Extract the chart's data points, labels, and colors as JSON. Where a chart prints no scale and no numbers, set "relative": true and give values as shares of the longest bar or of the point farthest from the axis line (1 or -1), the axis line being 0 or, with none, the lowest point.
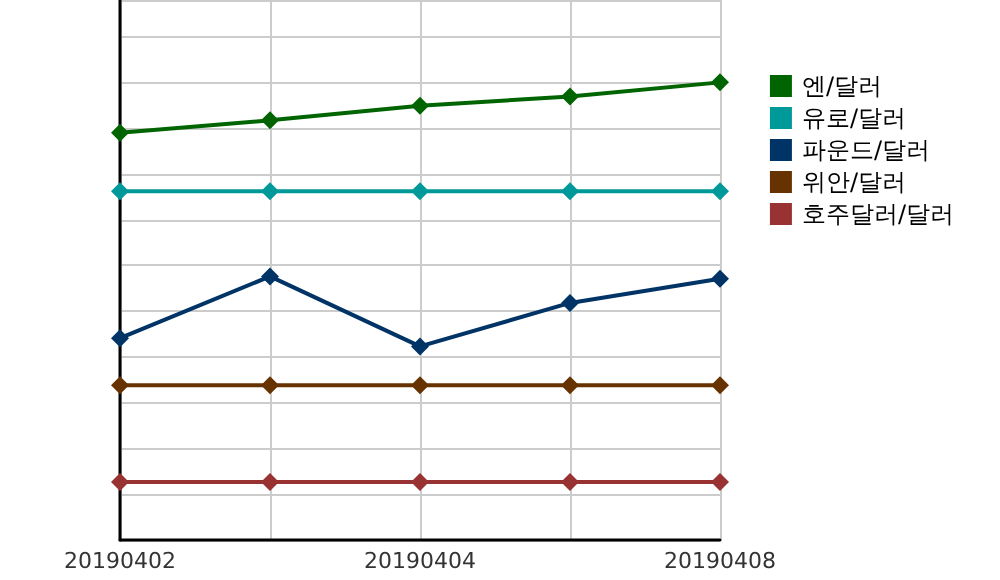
{
  "chart_data": {
    "type": "line",
    "relative": true,
    "categories": [
      "20190402",
      null,
      "20190404",
      null,
      "20190408"
    ],
    "series": [
      {
        "name": "엔/달러",
        "color": "#006400",
        "values": [
          0.89,
          0.917,
          0.949,
          0.969,
          1
        ]
      },
      {
        "name": "유로/달러",
        "color": "#009999",
        "values": [
          0.762,
          0.762,
          0.762,
          0.762,
          0.762
        ]
      },
      {
        "name": "파운드/달러",
        "color": "#003366",
        "values": [
          0.441,
          0.576,
          0.423,
          0.518,
          0.571
        ]
      },
      {
        "name": "위안/달러",
        "color": "#663300",
        "values": [
          0.338,
          0.338,
          0.338,
          0.338,
          0.338
        ]
      },
      {
        "name": "호주달러/달러",
        "color": "#993333",
        "values": [
          0.127,
          0.127,
          0.127,
          0.127,
          0.127
        ]
      }
    ],
    "grid": true,
    "legend": "right",
    "marker": "diamond",
    "line_style": "solid"
  }
}
